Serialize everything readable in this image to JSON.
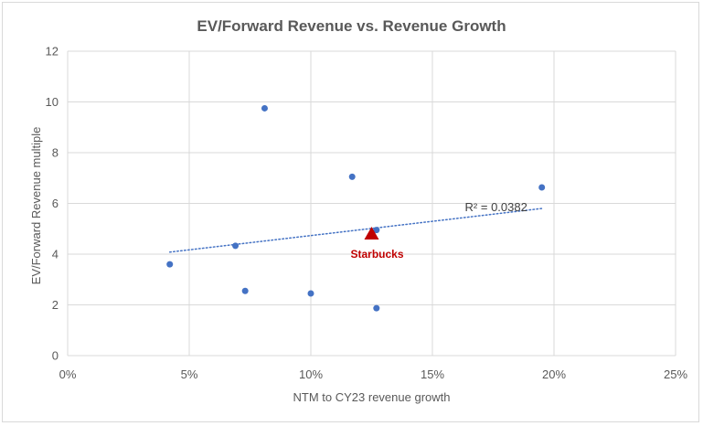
{
  "chart_data": {
    "type": "scatter",
    "title": "EV/Forward Revenue vs. Revenue Growth",
    "xlabel": "NTM to CY23 revenue growth",
    "ylabel": "EV/Forward Revenue multiple",
    "xlim": [
      0,
      0.25
    ],
    "ylim": [
      0,
      12
    ],
    "x_ticks": [
      0,
      0.05,
      0.1,
      0.15,
      0.2,
      0.25
    ],
    "x_tick_labels": [
      "0%",
      "5%",
      "10%",
      "15%",
      "20%",
      "25%"
    ],
    "y_ticks": [
      0,
      2,
      4,
      6,
      8,
      10,
      12
    ],
    "y_tick_labels": [
      "0",
      "2",
      "4",
      "6",
      "8",
      "10",
      "12"
    ],
    "grid": true,
    "points": [
      {
        "x": 0.042,
        "y": 3.6
      },
      {
        "x": 0.069,
        "y": 4.33
      },
      {
        "x": 0.073,
        "y": 2.55
      },
      {
        "x": 0.081,
        "y": 9.75
      },
      {
        "x": 0.1,
        "y": 2.45
      },
      {
        "x": 0.117,
        "y": 7.05
      },
      {
        "x": 0.127,
        "y": 4.95
      },
      {
        "x": 0.127,
        "y": 1.87
      },
      {
        "x": 0.195,
        "y": 6.63
      }
    ],
    "highlight": {
      "label": "Starbucks",
      "x": 0.125,
      "y": 4.83,
      "color": "#c00000"
    },
    "trendline": {
      "type": "linear",
      "x": [
        0.042,
        0.195
      ],
      "y": [
        4.08,
        5.8
      ],
      "style": "dotted",
      "r_squared_label": "R² = 0.0382"
    },
    "point_color": "#4472c4"
  }
}
